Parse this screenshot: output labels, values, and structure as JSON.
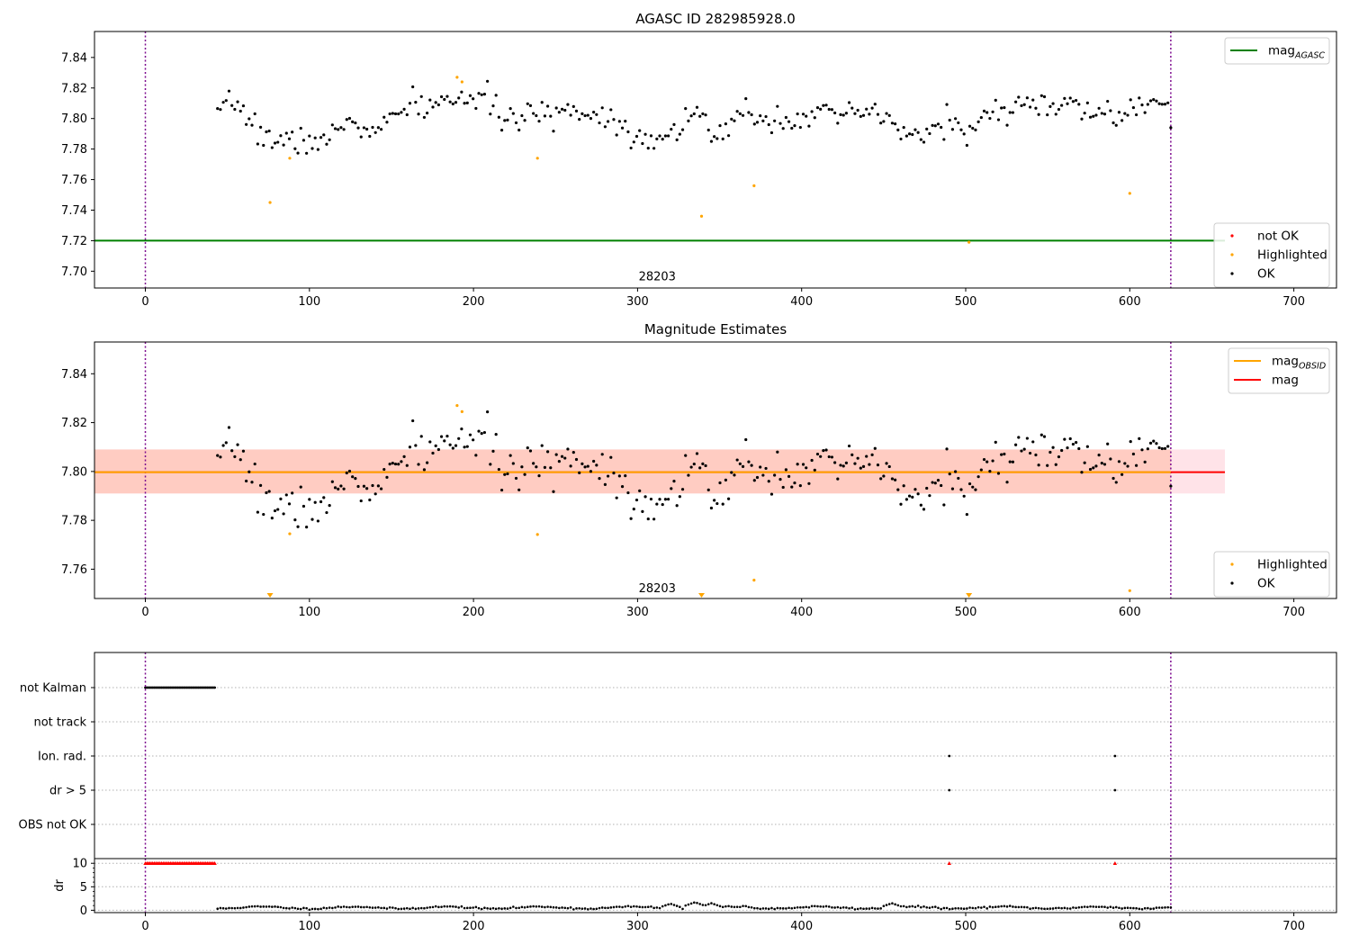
{
  "chart_data": [
    {
      "id": "agasc",
      "type": "scatter",
      "title": "AGASC ID 282985928.0",
      "xlim": [
        -31,
        726
      ],
      "ylim": [
        7.689,
        7.857
      ],
      "xticks": [
        0,
        100,
        200,
        300,
        400,
        500,
        600,
        700
      ],
      "yticks": [
        7.7,
        7.72,
        7.74,
        7.76,
        7.78,
        7.8,
        7.82,
        7.84
      ],
      "ytick_labels": [
        "7.70",
        "7.72",
        "7.74",
        "7.76",
        "7.78",
        "7.80",
        "7.82",
        "7.84"
      ],
      "obsid_boundaries": [
        0,
        625
      ],
      "obsid_label": {
        "text": "28203",
        "x": 312,
        "y": 7.694
      },
      "lines": [
        {
          "name": "mag_AGASC",
          "value": 7.72,
          "x_range": [
            -31,
            658
          ],
          "color": "#008000"
        }
      ],
      "highlighted_points": [
        [
          76,
          7.745
        ],
        [
          88,
          7.774
        ],
        [
          190,
          7.827
        ],
        [
          193,
          7.824
        ],
        [
          239,
          7.774
        ],
        [
          339,
          7.736
        ],
        [
          371,
          7.756
        ],
        [
          502,
          7.719
        ],
        [
          600,
          7.751
        ]
      ],
      "ok_series": {
        "x_start": 44,
        "x_end": 625,
        "step": 1.75,
        "mean": 7.8,
        "noise": 0.0045,
        "seed": 7,
        "trend": [
          [
            44,
            7.8
          ],
          [
            55,
            7.812
          ],
          [
            70,
            7.79
          ],
          [
            85,
            7.784
          ],
          [
            100,
            7.786
          ],
          [
            110,
            7.784
          ],
          [
            125,
            7.8
          ],
          [
            140,
            7.789
          ],
          [
            150,
            7.8
          ],
          [
            165,
            7.81
          ],
          [
            175,
            7.807
          ],
          [
            190,
            7.815
          ],
          [
            210,
            7.81
          ],
          [
            225,
            7.797
          ],
          [
            240,
            7.803
          ],
          [
            260,
            7.806
          ],
          [
            285,
            7.8
          ],
          [
            300,
            7.789
          ],
          [
            315,
            7.786
          ],
          [
            330,
            7.8
          ],
          [
            335,
            7.809
          ],
          [
            345,
            7.786
          ],
          [
            355,
            7.791
          ],
          [
            365,
            7.805
          ],
          [
            380,
            7.8
          ],
          [
            400,
            7.8
          ],
          [
            410,
            7.81
          ],
          [
            420,
            7.796
          ],
          [
            435,
            7.805
          ],
          [
            450,
            7.8
          ],
          [
            470,
            7.786
          ],
          [
            480,
            7.793
          ],
          [
            490,
            7.802
          ],
          [
            500,
            7.789
          ],
          [
            510,
            7.796
          ],
          [
            520,
            7.807
          ],
          [
            540,
            7.809
          ],
          [
            560,
            7.808
          ],
          [
            575,
            7.804
          ],
          [
            590,
            7.804
          ],
          [
            600,
            7.8
          ],
          [
            610,
            7.812
          ],
          [
            625,
            7.803
          ]
        ]
      },
      "legends": [
        {
          "position": "top-right",
          "entries": [
            {
              "label": "mag",
              "sub": "AGASC",
              "kind": "line",
              "color": "#008000"
            }
          ]
        },
        {
          "position": "bottom-right",
          "entries": [
            {
              "label": "not OK",
              "kind": "dot",
              "color": "#ff0000"
            },
            {
              "label": "Highlighted",
              "kind": "dot",
              "color": "#ffa500"
            },
            {
              "label": "OK",
              "kind": "dot",
              "color": "#000000"
            }
          ]
        }
      ]
    },
    {
      "id": "estimates",
      "type": "scatter",
      "title": "Magnitude Estimates",
      "xlim": [
        -31,
        726
      ],
      "ylim": [
        7.748,
        7.853
      ],
      "xticks": [
        0,
        100,
        200,
        300,
        400,
        500,
        600,
        700
      ],
      "yticks": [
        7.76,
        7.78,
        7.8,
        7.82,
        7.84
      ],
      "ytick_labels": [
        "7.76",
        "7.78",
        "7.80",
        "7.82",
        "7.84"
      ],
      "obsid_boundaries": [
        0,
        625
      ],
      "obsid_label": {
        "text": "28203",
        "x": 312,
        "y": 7.7505
      },
      "bands": [
        {
          "name": "mag",
          "y_range": [
            7.791,
            7.809
          ],
          "x_range": [
            -31,
            658
          ],
          "color": "#ffc0cb",
          "opacity": 0.45
        },
        {
          "name": "mag_OBSID",
          "y_range": [
            7.791,
            7.809
          ],
          "x_range": [
            -31,
            625
          ],
          "color": "#ffa07a",
          "opacity": 0.35
        }
      ],
      "lines": [
        {
          "name": "mag",
          "value": 7.7997,
          "x_range": [
            -31,
            658
          ],
          "color": "#ff0000"
        },
        {
          "name": "mag_OBSID",
          "value": 7.7997,
          "x_range": [
            -31,
            625
          ],
          "color": "#ffa500"
        }
      ],
      "highlighted_points": [
        [
          88,
          7.7745
        ],
        [
          190,
          7.827
        ],
        [
          193,
          7.8245
        ],
        [
          239,
          7.7742
        ],
        [
          371,
          7.7555
        ],
        [
          600,
          7.7512
        ]
      ],
      "out_of_range_markers": [
        76,
        339,
        502
      ],
      "ok_series": "same-as-agasc",
      "legends": [
        {
          "position": "top-right",
          "entries": [
            {
              "label": "mag",
              "sub": "OBSID",
              "kind": "line",
              "color": "#ffa500"
            },
            {
              "label": "mag",
              "kind": "line",
              "color": "#ff0000"
            }
          ]
        },
        {
          "position": "bottom-right",
          "entries": [
            {
              "label": "Highlighted",
              "kind": "dot",
              "color": "#ffa500"
            },
            {
              "label": "OK",
              "kind": "dot",
              "color": "#000000"
            }
          ]
        }
      ]
    },
    {
      "id": "flags",
      "type": "scatter",
      "xlim": [
        -31,
        726
      ],
      "categories": [
        "not Kalman",
        "not track",
        "Ion. rad.",
        "dr > 5",
        "OBS not OK"
      ],
      "obsid_boundaries": [
        0,
        625
      ],
      "flagged": {
        "not Kalman": {
          "x_start": 0,
          "x_end": 43,
          "step": 0.9
        },
        "not track": [],
        "Ion. rad.": [
          490,
          591
        ],
        "dr > 5": [
          490,
          591
        ],
        "OBS not OK": []
      }
    },
    {
      "id": "dr",
      "type": "scatter",
      "xlim": [
        -31,
        726
      ],
      "ylim": [
        -0.5,
        11
      ],
      "xticks": [
        0,
        100,
        200,
        300,
        400,
        500,
        600,
        700
      ],
      "yticks": [
        0,
        5,
        10
      ],
      "ytick_labels": [
        "0",
        "5",
        "10"
      ],
      "ylabel": "dr",
      "obsid_boundaries": [
        0,
        625
      ],
      "capped_points": {
        "value": 10,
        "x_start": 0,
        "x_end": 43,
        "step": 0.9,
        "extra_x": [
          490,
          591
        ],
        "color": "#ff0000"
      },
      "dr_series": {
        "x_start": 44,
        "x_end": 625,
        "step": 1.75,
        "level": 0.55,
        "amp": 0.35,
        "seed": 11,
        "bumps": [
          [
            320,
            1.4
          ],
          [
            335,
            1.7
          ],
          [
            345,
            1.5
          ],
          [
            365,
            1.0
          ],
          [
            455,
            1.5
          ]
        ]
      }
    }
  ]
}
